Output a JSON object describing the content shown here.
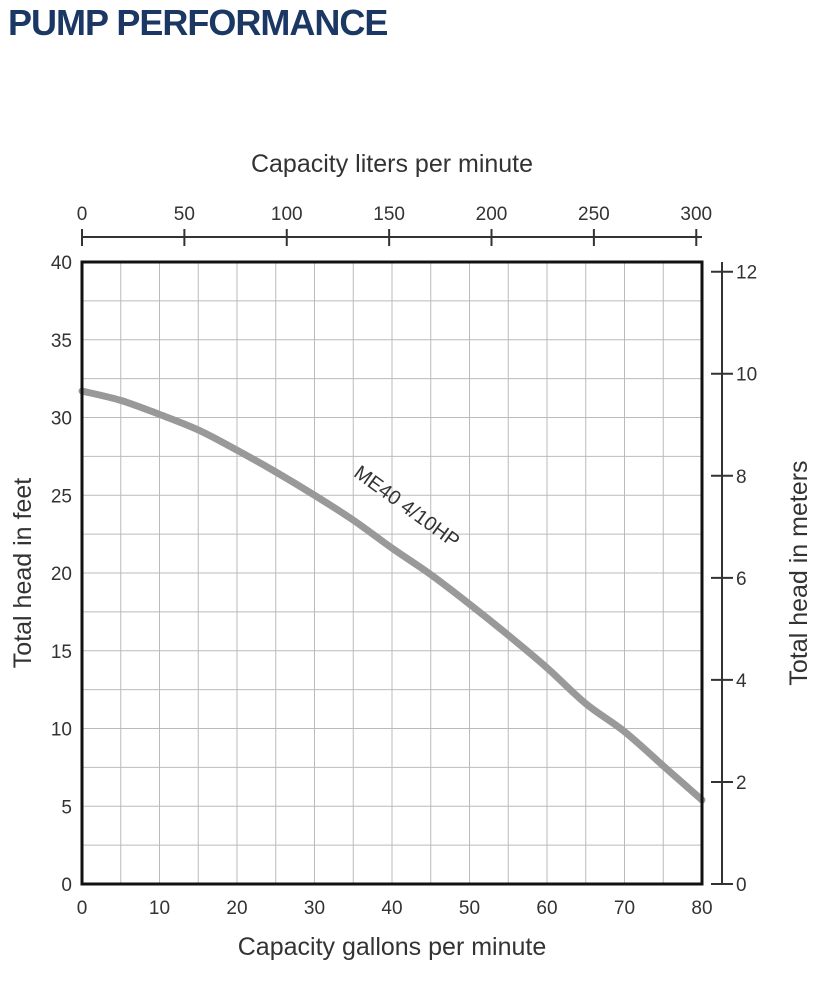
{
  "page": {
    "title": "PUMP PERFORMANCE"
  },
  "colors": {
    "title": "#1b3764",
    "curve": "#999999",
    "grid": "#bbbbbb",
    "frame": "#111111"
  },
  "chart_data": {
    "type": "line",
    "title": "PUMP PERFORMANCE",
    "xlabel": "Capacity gallons per minute",
    "ylabel": "Total head in feet",
    "x2label": "Capacity liters per minute",
    "y2label": "Total head in meters",
    "xlim": [
      0,
      80
    ],
    "ylim": [
      0,
      40
    ],
    "x2lim": [
      0,
      302.8
    ],
    "y2lim": [
      0,
      12.19
    ],
    "xticks": [
      0,
      10,
      20,
      30,
      40,
      50,
      60,
      70,
      80
    ],
    "yticks": [
      0,
      5,
      10,
      15,
      20,
      25,
      30,
      35,
      40
    ],
    "x2ticks": [
      0,
      50,
      100,
      150,
      200,
      250,
      300
    ],
    "y2ticks": [
      0,
      2,
      4,
      6,
      8,
      10,
      12
    ],
    "grid": true,
    "series": [
      {
        "name": "ME40 4/10HP",
        "x": [
          0,
          5,
          10,
          15,
          20,
          25,
          30,
          35,
          40,
          45,
          50,
          55,
          60,
          65,
          70,
          75,
          80
        ],
        "y": [
          31.7,
          31.1,
          30.2,
          29.2,
          27.9,
          26.5,
          25.0,
          23.4,
          21.6,
          19.9,
          18.0,
          16.0,
          13.9,
          11.6,
          9.8,
          7.6,
          5.4
        ]
      }
    ]
  }
}
